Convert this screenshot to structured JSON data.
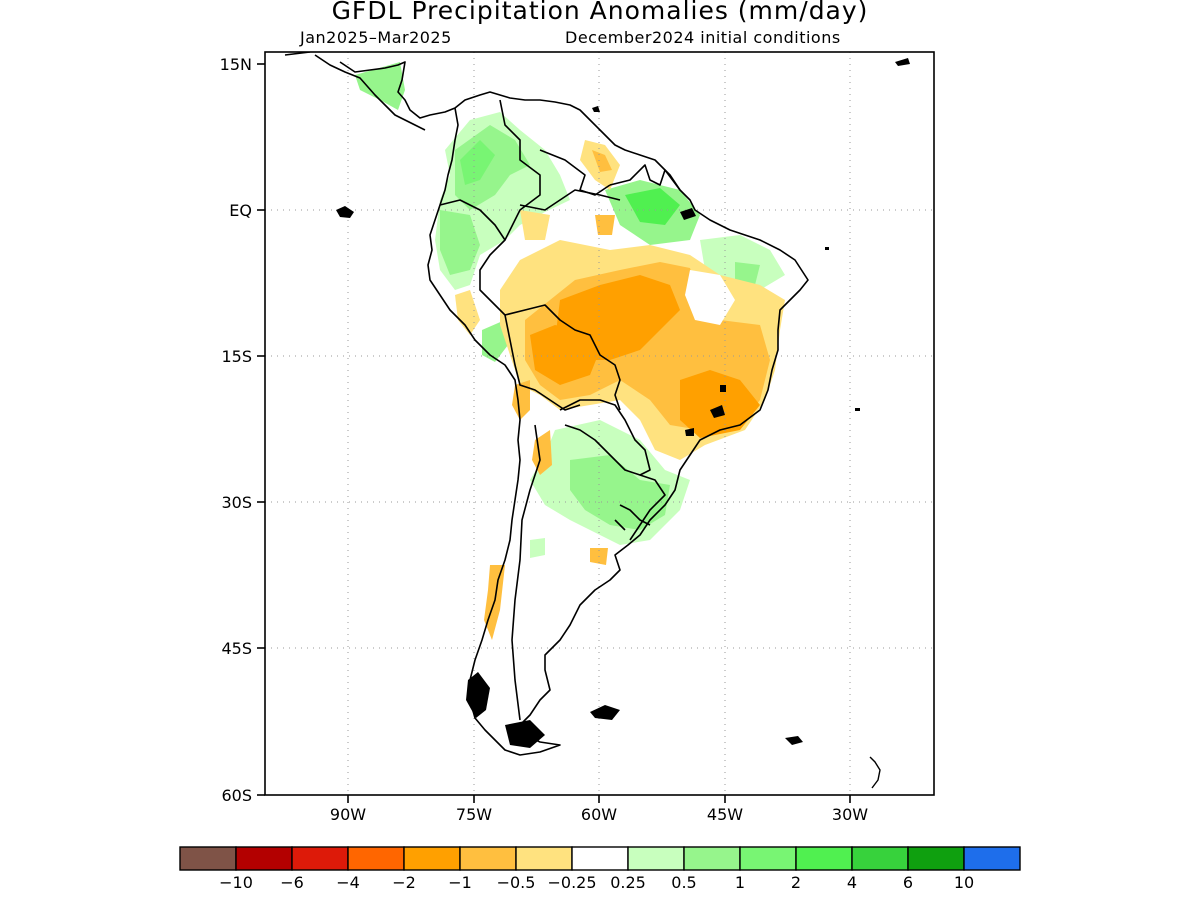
{
  "title": "GFDL Precipitation Anomalies (mm/day)",
  "subtitle_period": "Jan2025–Mar2025",
  "subtitle_init": "December2024 initial conditions",
  "map": {
    "lat_ticks": [
      "15N",
      "EQ",
      "15S",
      "30S",
      "45S",
      "60S"
    ],
    "lon_ticks": [
      "90W",
      "75W",
      "60W",
      "45W",
      "30W"
    ],
    "region": "South America",
    "grid": "dotted"
  },
  "colorbar": {
    "boxes": [
      "#7f5347",
      "#b30000",
      "#dd1a09",
      "#ff6600",
      "#ffa000",
      "#ffbf3f",
      "#ffe27f",
      "#ffffff",
      "#c8ffbe",
      "#96f58c",
      "#78f573",
      "#50f050",
      "#37d23c",
      "#0fa00f",
      "#1e6eeb"
    ],
    "labels": [
      "−10",
      "−6",
      "−4",
      "−2",
      "−1",
      "−0.5",
      "−0.25",
      "0.25",
      "0.5",
      "1",
      "2",
      "4",
      "6",
      "10"
    ]
  }
}
